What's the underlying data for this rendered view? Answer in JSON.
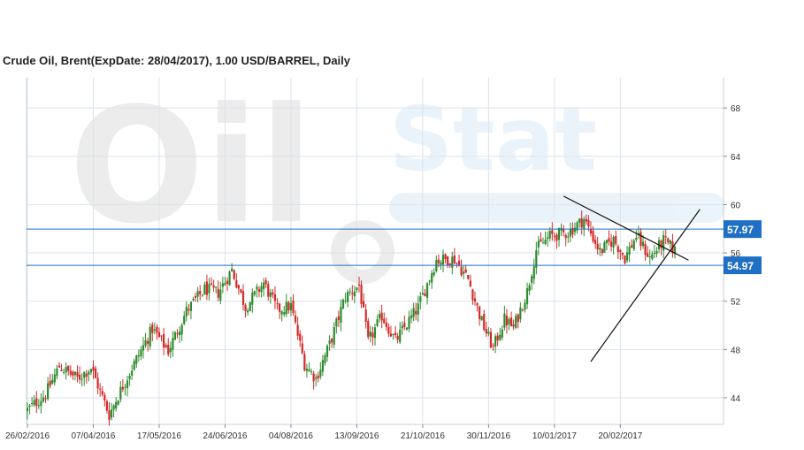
{
  "chart_data": {
    "type": "candlestick",
    "title": "Crude Oil, Brent(ExpDate: 28/04/2017), 1.00 USD/BARREL, Daily",
    "x_tick_labels": [
      "26/02/2016",
      "07/04/2016",
      "17/05/2016",
      "24/06/2016",
      "04/08/2016",
      "13/09/2016",
      "21/10/2016",
      "30/11/2016",
      "10/01/2017",
      "20/02/2017"
    ],
    "y_tick_labels": [
      "44",
      "48",
      "52",
      "56",
      "60",
      "64",
      "68"
    ],
    "y_ticks": [
      44,
      48,
      52,
      56,
      60,
      64,
      68
    ],
    "ylim": [
      41.8,
      70.5
    ],
    "colors": {
      "up": "#2e8b2e",
      "down": "#d62828",
      "level": "#1f6fc4",
      "grid": "#dce3ea"
    },
    "levels": [
      {
        "value": 57.97,
        "label": "57.97"
      },
      {
        "value": 54.97,
        "label": "54.97"
      }
    ],
    "anchors": [
      [
        0,
        43.0
      ],
      [
        8,
        44.3
      ],
      [
        14,
        46.6
      ],
      [
        22,
        45.6
      ],
      [
        28,
        46.5
      ],
      [
        36,
        42.6
      ],
      [
        42,
        45.0
      ],
      [
        48,
        47.2
      ],
      [
        55,
        49.7
      ],
      [
        62,
        47.9
      ],
      [
        70,
        51.2
      ],
      [
        78,
        53.0
      ],
      [
        84,
        52.7
      ],
      [
        90,
        54.6
      ],
      [
        96,
        51.5
      ],
      [
        104,
        53.5
      ],
      [
        110,
        51.3
      ],
      [
        116,
        51.6
      ],
      [
        122,
        46.8
      ],
      [
        127,
        45.6
      ],
      [
        133,
        48.4
      ],
      [
        140,
        52.4
      ],
      [
        146,
        53.3
      ],
      [
        150,
        48.6
      ],
      [
        156,
        50.8
      ],
      [
        162,
        48.7
      ],
      [
        167,
        50.1
      ],
      [
        172,
        51.5
      ],
      [
        180,
        55.4
      ],
      [
        188,
        55.5
      ],
      [
        194,
        53.8
      ],
      [
        200,
        50.3
      ],
      [
        205,
        48.1
      ],
      [
        210,
        50.5
      ],
      [
        214,
        49.8
      ],
      [
        220,
        52.8
      ],
      [
        224,
        56.3
      ],
      [
        230,
        57.4
      ],
      [
        238,
        57.7
      ],
      [
        245,
        58.8
      ],
      [
        252,
        56.1
      ],
      [
        258,
        57.1
      ],
      [
        263,
        55.6
      ],
      [
        268,
        57.4
      ],
      [
        274,
        55.6
      ],
      [
        280,
        57.0
      ],
      [
        285,
        56.2
      ]
    ],
    "trendlines": [
      {
        "from": [
          248,
          47.0
        ],
        "to": [
          296,
          59.6
        ]
      },
      {
        "from": [
          236,
          60.7
        ],
        "to": [
          291,
          55.4
        ]
      }
    ]
  },
  "watermark": {
    "brand": "Oil",
    "suffix": "Stat"
  }
}
